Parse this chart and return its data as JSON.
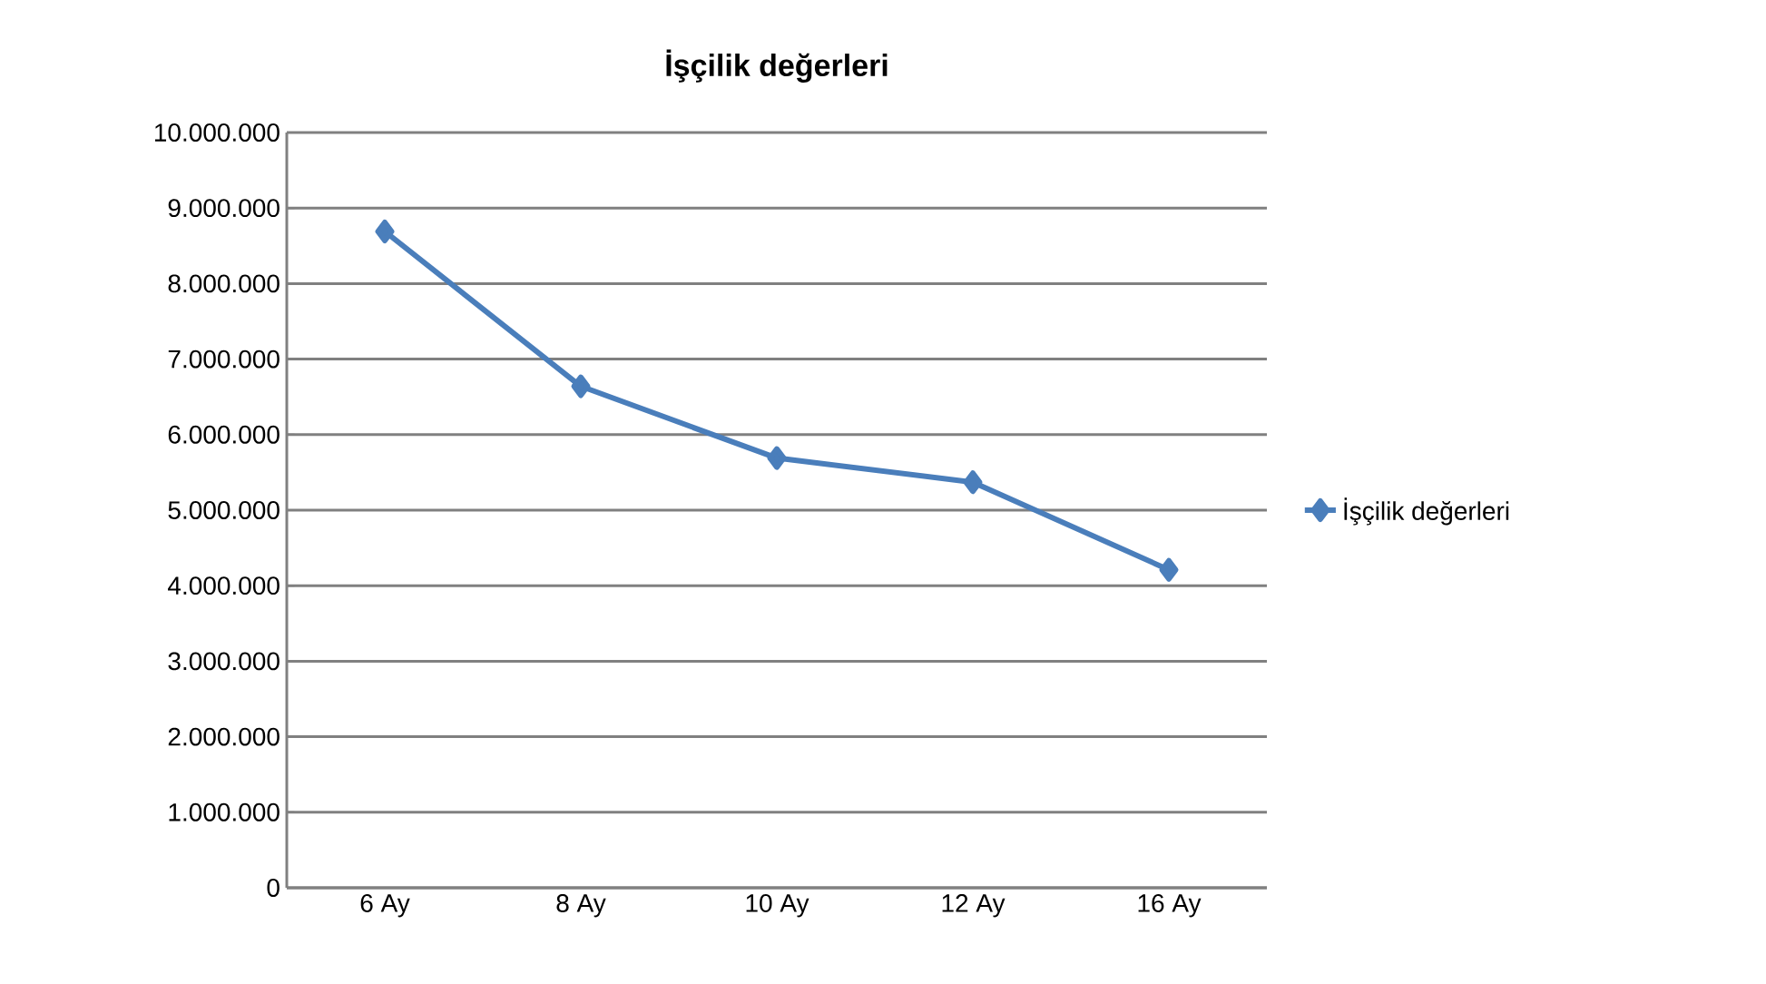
{
  "chart_data": {
    "type": "line",
    "title": "İşçilik değerleri",
    "categories": [
      "6 Ay",
      "8 Ay",
      "10 Ay",
      "12 Ay",
      "16 Ay"
    ],
    "series": [
      {
        "name": "İşçilik değerleri",
        "color": "#4a7ebb",
        "values": [
          8690000,
          6640000,
          5690000,
          5370000,
          4210000
        ]
      }
    ],
    "ylim": [
      0,
      10000000
    ],
    "yticks": [
      {
        "value": 0,
        "label": "0"
      },
      {
        "value": 1000000,
        "label": "1.000.000"
      },
      {
        "value": 2000000,
        "label": "2.000.000"
      },
      {
        "value": 3000000,
        "label": "3.000.000"
      },
      {
        "value": 4000000,
        "label": "4.000.000"
      },
      {
        "value": 5000000,
        "label": "5.000.000"
      },
      {
        "value": 6000000,
        "label": "6.000.000"
      },
      {
        "value": 7000000,
        "label": "7.000.000"
      },
      {
        "value": 8000000,
        "label": "8.000.000"
      },
      {
        "value": 9000000,
        "label": "9.000.000"
      },
      {
        "value": 10000000,
        "label": "10.000.000"
      }
    ],
    "grid": "y",
    "legend": "right",
    "marker": "diamond",
    "line_style": "solid"
  }
}
